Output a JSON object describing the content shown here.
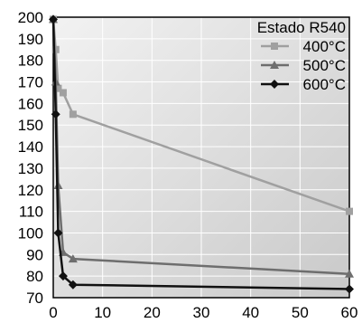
{
  "chart_data": {
    "type": "line",
    "title": "",
    "xlabel": "",
    "ylabel": "",
    "xlim": [
      0,
      60
    ],
    "ylim": [
      70,
      200
    ],
    "x_ticks": [
      0,
      10,
      20,
      30,
      40,
      50,
      60
    ],
    "y_ticks": [
      70,
      80,
      90,
      100,
      110,
      120,
      130,
      140,
      150,
      160,
      170,
      180,
      190,
      200
    ],
    "grid": true,
    "legend": {
      "title": "Estado R540",
      "position": "top-right"
    },
    "series": [
      {
        "name": "400°C",
        "color": "#a0a0a0",
        "marker": "square",
        "x": [
          0,
          0.5,
          1,
          2,
          4,
          60
        ],
        "y": [
          199,
          185,
          167,
          165,
          155,
          110
        ]
      },
      {
        "name": "500°C",
        "color": "#6e6e6e",
        "marker": "triangle",
        "x": [
          0,
          0.5,
          1,
          2,
          4,
          60
        ],
        "y": [
          199,
          170,
          122,
          91,
          88,
          81
        ]
      },
      {
        "name": "600°C",
        "color": "#111111",
        "marker": "diamond",
        "x": [
          0,
          0.5,
          1,
          2,
          4,
          60
        ],
        "y": [
          199,
          155,
          100,
          80,
          76,
          74
        ]
      }
    ]
  }
}
